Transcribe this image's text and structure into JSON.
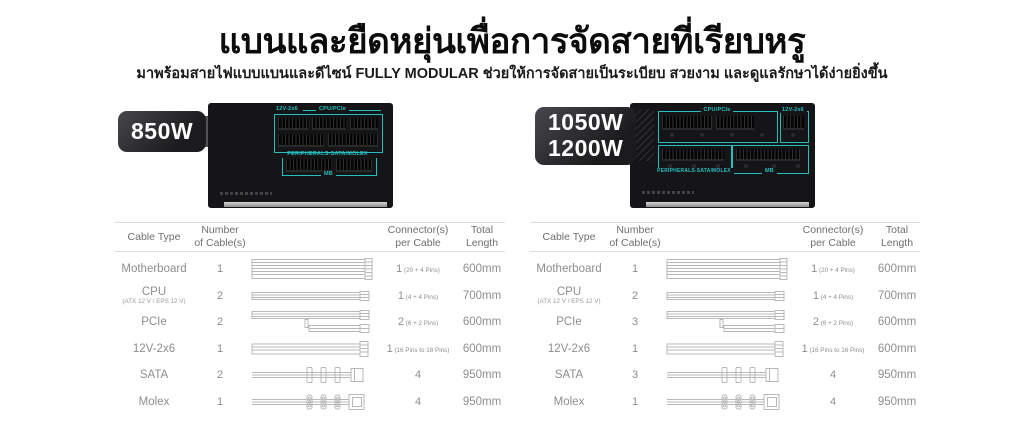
{
  "header": {
    "title": "แบนและยืดหยุ่นเพื่อการจัดสายที่เรียบหรู",
    "subtitle": "มาพร้อมสายไฟแบบแบนและดีไซน์ FULLY MODULAR ช่วยให้การจัดสายเป็นระเบียบ สวยงาม และดูแลรักษาได้ง่ายยิ่งขึ้น"
  },
  "colors": {
    "accent_teal": "#24c0c0",
    "psu_body": "#151517",
    "badge_dark": "#1b1b1d",
    "table_text_gray": "#8e8e8e"
  },
  "products": [
    {
      "badge": {
        "lines": [
          "850W"
        ]
      },
      "panel_labels": {
        "v12": "12V-2x6",
        "cpu_pcie": "CPU/PCIe",
        "peripherals": "PERIPHERALS-SATA/MOLEX",
        "mb": "MB"
      },
      "table": {
        "headers": [
          "Cable Type",
          "Number\nof Cable(s)",
          "",
          "Connector(s)\nper Cable",
          "Total\nLength"
        ],
        "rows": [
          {
            "cable_type": "Motherboard",
            "sub": "",
            "count": "1",
            "image": "motherboard",
            "connectors": "1",
            "connectors_note": "(20 + 4 Pins)",
            "length": "600mm"
          },
          {
            "cable_type": "CPU",
            "sub": "(ATX 12 V / EPS 12 V)",
            "count": "2",
            "image": "cpu",
            "connectors": "1",
            "connectors_note": "(4 + 4 Pins)",
            "length": "700mm"
          },
          {
            "cable_type": "PCIe",
            "sub": "",
            "count": "2",
            "image": "pcie",
            "connectors": "2",
            "connectors_note": "(6 + 2 Pins)",
            "length": "600mm"
          },
          {
            "cable_type": "12V-2x6",
            "sub": "",
            "count": "1",
            "image": "12v2x6",
            "connectors": "1",
            "connectors_note": "(16 Pins to 16 Pins)",
            "length": "600mm"
          },
          {
            "cable_type": "SATA",
            "sub": "",
            "count": "2",
            "image": "sata",
            "connectors": "4",
            "connectors_note": "",
            "length": "950mm"
          },
          {
            "cable_type": "Molex",
            "sub": "",
            "count": "1",
            "image": "molex",
            "connectors": "4",
            "connectors_note": "",
            "length": "950mm"
          }
        ]
      }
    },
    {
      "badge": {
        "lines": [
          "1050W",
          "1200W"
        ]
      },
      "panel_labels": {
        "v12": "12V-2x6",
        "cpu_pcie": "CPU/PCIe",
        "peripherals": "PERIPHERALS-SATA/MOLEX",
        "mb": "MB"
      },
      "table": {
        "headers": [
          "Cable Type",
          "Number\nof Cable(s)",
          "",
          "Connector(s)\nper Cable",
          "Total\nLength"
        ],
        "rows": [
          {
            "cable_type": "Motherboard",
            "sub": "",
            "count": "1",
            "image": "motherboard",
            "connectors": "1",
            "connectors_note": "(20 + 4 Pins)",
            "length": "600mm"
          },
          {
            "cable_type": "CPU",
            "sub": "(ATX 12 V / EPS 12 V)",
            "count": "2",
            "image": "cpu",
            "connectors": "1",
            "connectors_note": "(4 + 4 Pins)",
            "length": "700mm"
          },
          {
            "cable_type": "PCIe",
            "sub": "",
            "count": "3",
            "image": "pcie",
            "connectors": "2",
            "connectors_note": "(6 + 2 Pins)",
            "length": "600mm"
          },
          {
            "cable_type": "12V-2x6",
            "sub": "",
            "count": "1",
            "image": "12v2x6",
            "connectors": "1",
            "connectors_note": "(16 Pins to 16 Pins)",
            "length": "600mm"
          },
          {
            "cable_type": "SATA",
            "sub": "",
            "count": "3",
            "image": "sata",
            "connectors": "4",
            "connectors_note": "",
            "length": "950mm"
          },
          {
            "cable_type": "Molex",
            "sub": "",
            "count": "1",
            "image": "molex",
            "connectors": "4",
            "connectors_note": "",
            "length": "950mm"
          }
        ]
      }
    }
  ]
}
